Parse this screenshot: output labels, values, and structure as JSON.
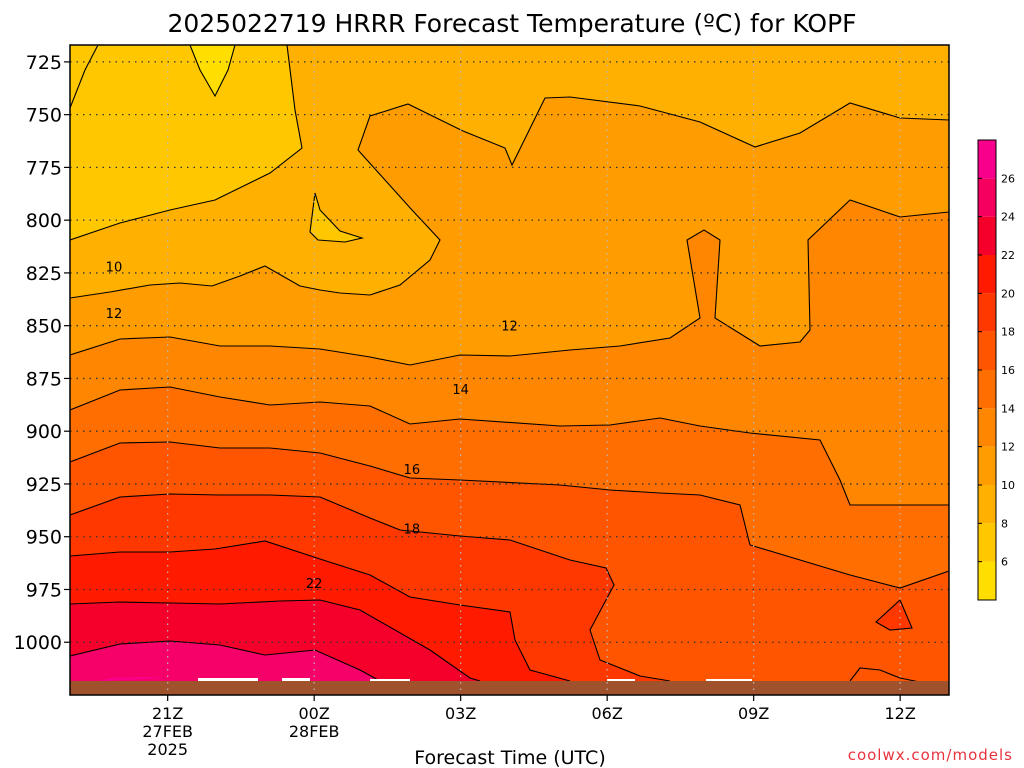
{
  "chart_data": {
    "type": "heatmap",
    "title": "2025022719 HRRR Forecast Temperature (ºC) for KOPF",
    "xlabel": "Forecast Time (UTC)",
    "ylabel": "",
    "credit": "coolwx.com/models",
    "x_ticks": [
      {
        "hour": 21,
        "lines": [
          "21Z",
          "27FEB",
          "2025"
        ]
      },
      {
        "hour": 24,
        "lines": [
          "00Z",
          "28FEB"
        ]
      },
      {
        "hour": 27,
        "lines": [
          "03Z"
        ]
      },
      {
        "hour": 30,
        "lines": [
          "06Z"
        ]
      },
      {
        "hour": 33,
        "lines": [
          "09Z"
        ]
      },
      {
        "hour": 36,
        "lines": [
          "12Z"
        ]
      }
    ],
    "xlim": [
      19,
      37
    ],
    "y_ticks": [
      725,
      750,
      775,
      800,
      825,
      850,
      875,
      900,
      925,
      950,
      975,
      1000
    ],
    "ylim_hpa": [
      717,
      1025
    ],
    "surface_pressure_hpa": 1017,
    "colorbar": {
      "levels": [
        4,
        6,
        8,
        10,
        12,
        14,
        16,
        18,
        20,
        22,
        24,
        26,
        28
      ],
      "tick_labels": [
        "6",
        "8",
        "10",
        "12",
        "14",
        "16",
        "18",
        "20",
        "22",
        "24",
        "26"
      ],
      "colors": [
        "#ffde00",
        "#ffc700",
        "#ffb000",
        "#ff9c00",
        "#ff8600",
        "#ff6e00",
        "#ff5400",
        "#ff3800",
        "#ff1a00",
        "#f4002a",
        "#f60060",
        "#f8008c"
      ]
    },
    "contour_labels": [
      {
        "text": "10",
        "hour": 19.9,
        "hpa": 822
      },
      {
        "text": "12",
        "hour": 19.9,
        "hpa": 844
      },
      {
        "text": "12",
        "hour": 28.0,
        "hpa": 850
      },
      {
        "text": "14",
        "hour": 27.0,
        "hpa": 880
      },
      {
        "text": "16",
        "hour": 26.0,
        "hpa": 918
      },
      {
        "text": "18",
        "hour": 26.0,
        "hpa": 946
      },
      {
        "text": "22",
        "hour": 24.0,
        "hpa": 972
      }
    ]
  }
}
